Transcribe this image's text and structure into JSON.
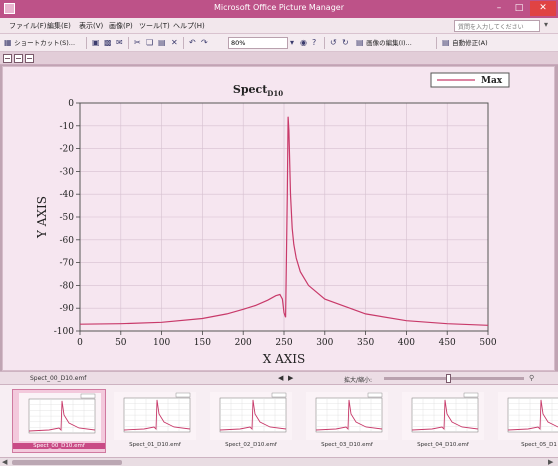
{
  "window": {
    "title": "Microsoft Office Picture Manager"
  },
  "menubar": {
    "items": [
      "ファイル(F)",
      "編集(E)",
      "表示(V)",
      "画像(P)",
      "ツール(T)",
      "ヘルプ(H)"
    ],
    "help_placeholder": "質問を入力してください"
  },
  "toolbar": {
    "shortcuts_label": "ショートカット(S)...",
    "zoom_value": "80%",
    "edit_pictures_label": "画像の編集(I)...",
    "auto_correct_label": "自動修正(A)"
  },
  "preview": {
    "legend_label": "Max"
  },
  "statusbar": {
    "filename": "Spect_00_D10.emf",
    "zoom_label": "拡大/縮小:"
  },
  "filmstrip": {
    "thumbnails": [
      {
        "label": "Spect_00_D10.emf"
      },
      {
        "label": "Spect_01_D10.emf"
      },
      {
        "label": "Spect_02_D10.emf"
      },
      {
        "label": "Spect_03_D10.emf"
      },
      {
        "label": "Spect_04_D10.emf"
      },
      {
        "label": "Spect_05_D1"
      }
    ]
  },
  "colors": {
    "title_bar": "#bd5288",
    "accent": "#c94a85",
    "plot_line": "#c83a6a",
    "plot_background": "#f6e6f0",
    "grid": "#d6c0d0"
  },
  "chart_data": {
    "type": "line",
    "title": "Spect",
    "title_subscript": "D10",
    "xlabel": "X AXIS",
    "ylabel": "Y AXIS",
    "xlim": [
      0,
      500
    ],
    "ylim": [
      -100,
      0
    ],
    "x_ticks": [
      0,
      50,
      100,
      150,
      200,
      250,
      300,
      350,
      400,
      450,
      500
    ],
    "y_ticks": [
      0,
      -10,
      -20,
      -30,
      -40,
      -50,
      -60,
      -70,
      -80,
      -90,
      -100
    ],
    "grid": true,
    "legend": "top-right",
    "series": [
      {
        "name": "Max",
        "x": [
          0,
          50,
          100,
          150,
          180,
          200,
          215,
          230,
          240,
          245,
          248,
          250,
          252,
          254,
          255,
          256,
          258,
          260,
          262,
          265,
          270,
          280,
          300,
          350,
          400,
          450,
          500
        ],
        "y": [
          -97,
          -96.8,
          -96.2,
          -94.5,
          -92.5,
          -90.5,
          -88.8,
          -86.5,
          -84.5,
          -84,
          -86,
          -92,
          -94,
          -40,
          -6,
          -12,
          -40,
          -55,
          -62,
          -68,
          -74,
          -80,
          -86,
          -92.5,
          -95.5,
          -96.8,
          -97.5
        ]
      }
    ]
  }
}
